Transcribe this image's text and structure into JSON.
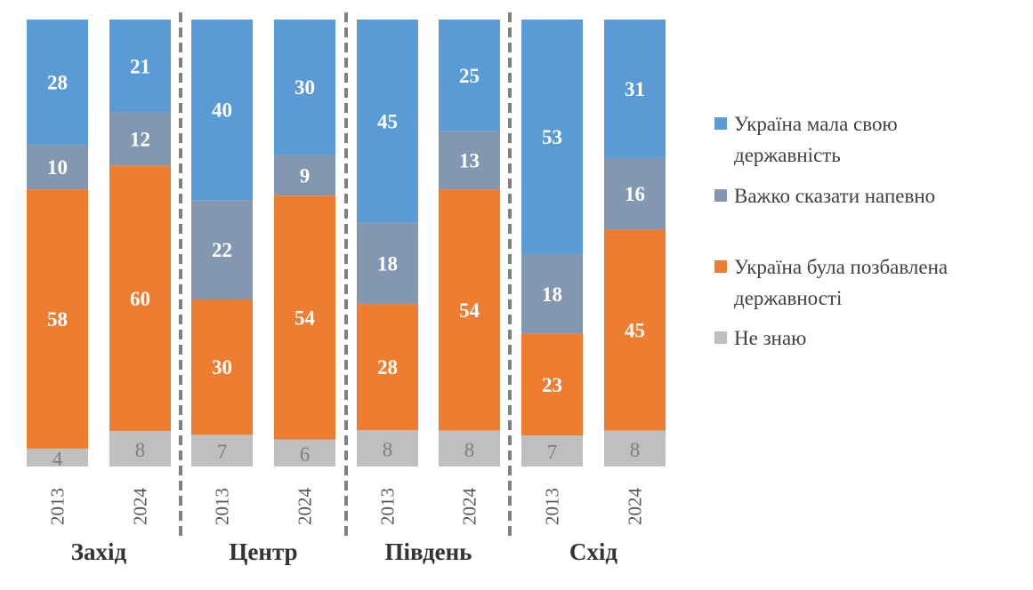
{
  "chart_data": {
    "type": "bar",
    "stacked": true,
    "normalized": true,
    "groups": [
      {
        "region": "Захід",
        "bars": [
          {
            "year": "2013",
            "values": [
              28,
              10,
              58,
              4
            ]
          },
          {
            "year": "2024",
            "values": [
              21,
              12,
              60,
              8
            ]
          }
        ]
      },
      {
        "region": "Центр",
        "bars": [
          {
            "year": "2013",
            "values": [
              40,
              22,
              30,
              7
            ]
          },
          {
            "year": "2024",
            "values": [
              30,
              9,
              54,
              6
            ]
          }
        ]
      },
      {
        "region": "Південь",
        "bars": [
          {
            "year": "2013",
            "values": [
              45,
              18,
              28,
              8
            ]
          },
          {
            "year": "2024",
            "values": [
              25,
              13,
              54,
              8
            ]
          }
        ]
      },
      {
        "region": "Схід",
        "bars": [
          {
            "year": "2013",
            "values": [
              53,
              18,
              23,
              7
            ]
          },
          {
            "year": "2024",
            "values": [
              31,
              16,
              45,
              8
            ]
          }
        ]
      }
    ],
    "series": [
      {
        "name": "Україна мала свою державність",
        "legend_lines": [
          "Україна мала свою",
          "державність"
        ],
        "color": "#5B9BD5",
        "label_color": "#FFFFFF"
      },
      {
        "name": "Важко сказати напевно",
        "legend_lines": [
          "Важко сказати напевно"
        ],
        "color": "#8497B0",
        "label_color": "#FFFFFF"
      },
      {
        "name": "Україна була позбавлена державності",
        "legend_lines": [
          "Україна була позбавлена",
          "державності"
        ],
        "color": "#ED7D31",
        "label_color": "#FFFFFF"
      },
      {
        "name": "Не знаю",
        "legend_lines": [
          "Не знаю"
        ],
        "color": "#BFBFBF",
        "label_color": "#7F7F7F"
      }
    ],
    "stack_order": "top-to-bottom",
    "legend_placement": "right",
    "grid": false,
    "group_dividers": "dashed"
  }
}
